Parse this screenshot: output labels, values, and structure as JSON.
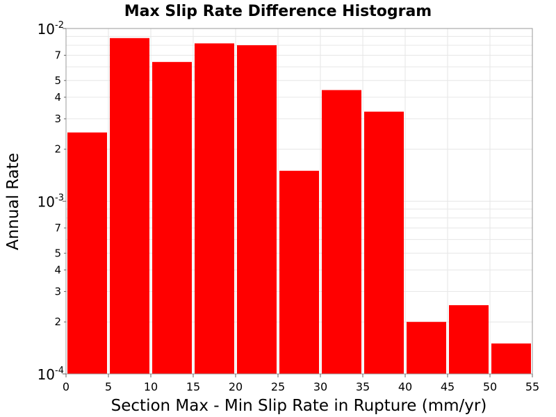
{
  "chart_data": {
    "type": "bar",
    "title": "Max Slip Rate Difference Histogram",
    "xlabel": "Section Max - Min Slip Rate in Rupture (mm/yr)",
    "ylabel": "Annual Rate",
    "xlim": [
      0,
      55
    ],
    "ylim": [
      0.0001,
      0.01
    ],
    "yscale": "log",
    "grid": true,
    "bar_color": "#ff0000",
    "bin_width": 5,
    "bins": [
      {
        "x0": 0,
        "x1": 5,
        "value": 0.0025
      },
      {
        "x0": 5,
        "x1": 10,
        "value": 0.0088
      },
      {
        "x0": 10,
        "x1": 15,
        "value": 0.0064
      },
      {
        "x0": 15,
        "x1": 20,
        "value": 0.0082
      },
      {
        "x0": 20,
        "x1": 25,
        "value": 0.008
      },
      {
        "x0": 25,
        "x1": 30,
        "value": 0.0015
      },
      {
        "x0": 30,
        "x1": 35,
        "value": 0.0044
      },
      {
        "x0": 35,
        "x1": 40,
        "value": 0.0033
      },
      {
        "x0": 40,
        "x1": 45,
        "value": 0.0002
      },
      {
        "x0": 45,
        "x1": 50,
        "value": 0.00025
      },
      {
        "x0": 50,
        "x1": 55,
        "value": 0.00015
      }
    ],
    "x_ticks": [
      "0",
      "5",
      "10",
      "15",
      "20",
      "25",
      "30",
      "35",
      "40",
      "45",
      "50",
      "55"
    ],
    "y_major_ticks": [
      {
        "value": 0.01,
        "base": "10",
        "exp": "-2"
      },
      {
        "value": 0.001,
        "base": "10",
        "exp": "-3"
      },
      {
        "value": 0.0001,
        "base": "10",
        "exp": "-4"
      }
    ],
    "y_minor_ticks": [
      {
        "value": 0.007,
        "label": "7"
      },
      {
        "value": 0.005,
        "label": "5"
      },
      {
        "value": 0.004,
        "label": "4"
      },
      {
        "value": 0.003,
        "label": "3"
      },
      {
        "value": 0.002,
        "label": "2"
      },
      {
        "value": 0.0007,
        "label": "7"
      },
      {
        "value": 0.0005,
        "label": "5"
      },
      {
        "value": 0.0004,
        "label": "4"
      },
      {
        "value": 0.0003,
        "label": "3"
      },
      {
        "value": 0.0002,
        "label": "2"
      }
    ]
  }
}
